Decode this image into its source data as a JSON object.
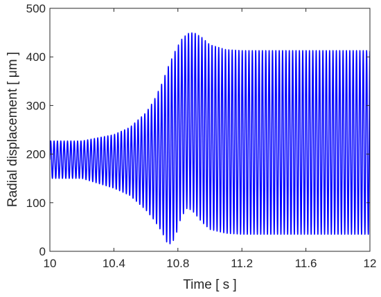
{
  "chart_data": {
    "type": "line",
    "title": "",
    "xlabel": "Time   [ s ]",
    "ylabel": "Radial displacement   [ μm ]",
    "xlim": [
      10,
      12
    ],
    "ylim": [
      0,
      500
    ],
    "xticks": [
      10,
      10.4,
      10.8,
      11.2,
      11.6,
      12
    ],
    "xtick_labels": [
      "10",
      "10.4",
      "10.8",
      "11.2",
      "11.6",
      "12"
    ],
    "yticks": [
      0,
      100,
      200,
      300,
      400,
      500
    ],
    "ytick_labels": [
      "0",
      "100",
      "200",
      "300",
      "400",
      "500"
    ],
    "grid": false,
    "legend": "none",
    "series_color": "#0000ff",
    "envelope": {
      "time": [
        10.0,
        10.2,
        10.4,
        10.5,
        10.6,
        10.65,
        10.7,
        10.74,
        10.78,
        10.82,
        10.86,
        10.9,
        10.95,
        11.0,
        11.1,
        11.2,
        12.0
      ],
      "upper": [
        227,
        227,
        240,
        255,
        285,
        310,
        345,
        380,
        410,
        435,
        448,
        450,
        440,
        425,
        415,
        413,
        413
      ],
      "lower": [
        150,
        150,
        130,
        115,
        85,
        65,
        40,
        12,
        25,
        70,
        90,
        80,
        60,
        45,
        37,
        35,
        35
      ]
    },
    "oscillation_period_s": 0.021
  }
}
